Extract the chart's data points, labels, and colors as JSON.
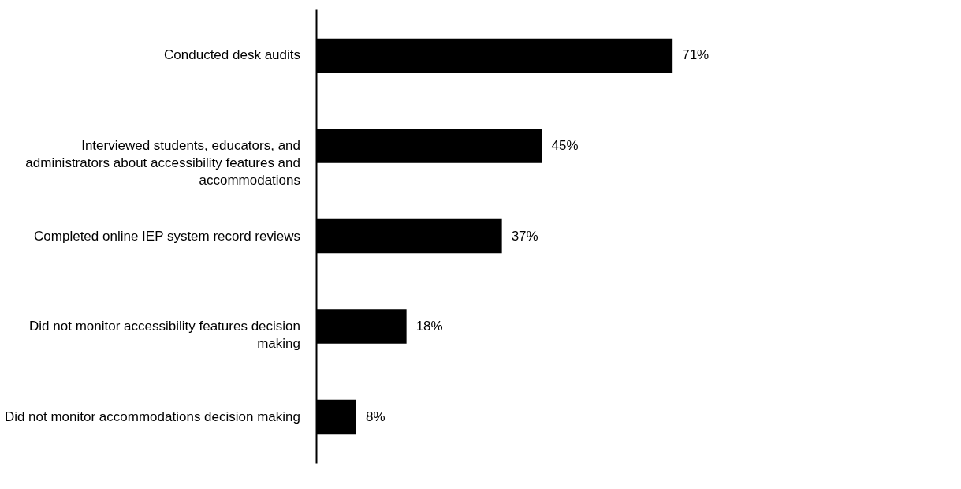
{
  "chart_data": {
    "type": "bar",
    "orientation": "horizontal",
    "categories": [
      "Conducted desk audits",
      "Interviewed students, educators, and administrators about accessibility features and accommodations",
      "Completed online IEP system record reviews",
      "Did not monitor accessibility features decision making",
      "Did not monitor accommodations decision making"
    ],
    "values": [
      71,
      45,
      37,
      18,
      8
    ],
    "value_labels": [
      "71%",
      "45%",
      "37%",
      "18%",
      "8%"
    ],
    "color": "#000000"
  }
}
